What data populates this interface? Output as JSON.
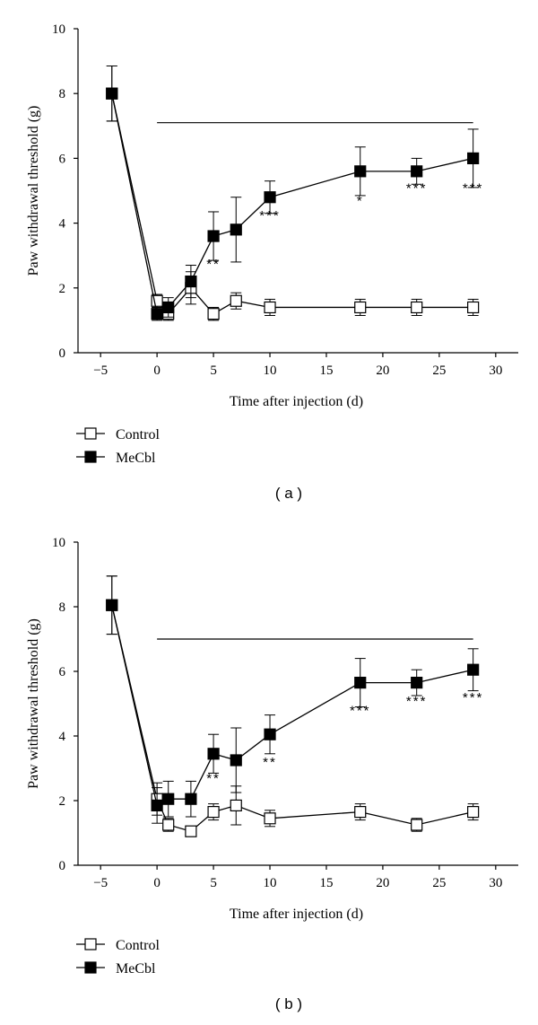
{
  "chart_data": [
    {
      "type": "line",
      "panel_label": "( a )",
      "xlabel": "Time after injection (d)",
      "ylabel": "Paw withdrawal threshold (g)",
      "xlim": [
        -7,
        32
      ],
      "ylim": [
        0,
        10
      ],
      "xticks": [
        -5,
        0,
        5,
        10,
        15,
        20,
        25,
        30
      ],
      "xtick_labels": [
        "−5",
        "0",
        "5",
        "10",
        "15",
        "20",
        "25",
        "30"
      ],
      "yticks": [
        0,
        2,
        4,
        6,
        8,
        10
      ],
      "ytick_labels": [
        "0",
        "2",
        "4",
        "6",
        "8",
        "10"
      ],
      "reference_line": {
        "x_start": 0,
        "x_end": 28,
        "y": 7.1
      },
      "series": [
        {
          "name": "Control",
          "marker": "open-square",
          "x": [
            -4,
            0,
            1,
            3,
            5,
            7,
            10,
            18,
            23,
            28
          ],
          "y": [
            8.0,
            1.6,
            1.2,
            2.0,
            1.2,
            1.6,
            1.4,
            1.4,
            1.4,
            1.4
          ],
          "err": [
            0.85,
            0.2,
            0.2,
            0.5,
            0.2,
            0.25,
            0.25,
            0.25,
            0.25,
            0.25
          ]
        },
        {
          "name": "MeCbl",
          "marker": "filled-square",
          "x": [
            -4,
            0,
            1,
            3,
            5,
            7,
            10,
            18,
            23,
            28
          ],
          "y": [
            8.0,
            1.2,
            1.4,
            2.2,
            3.6,
            3.8,
            4.8,
            5.6,
            5.6,
            6.0
          ],
          "err": [
            0.85,
            0.2,
            0.3,
            0.5,
            0.75,
            1.0,
            0.5,
            0.75,
            0.4,
            0.9
          ]
        }
      ],
      "significance": [
        {
          "x": 5,
          "y": 2.6,
          "label": "**"
        },
        {
          "x": 10,
          "y": 4.1,
          "label": "***"
        },
        {
          "x": 18,
          "y": 4.55,
          "label": "*"
        },
        {
          "x": 23,
          "y": 4.95,
          "label": "***"
        },
        {
          "x": 28,
          "y": 4.95,
          "label": "***"
        }
      ],
      "legend": [
        "Control",
        "MeCbl"
      ],
      "legend_placement": "bottom-left"
    },
    {
      "type": "line",
      "panel_label": "( b )",
      "xlabel": "Time after injection (d)",
      "ylabel": "Paw withdrawal threshold (g)",
      "xlim": [
        -7,
        32
      ],
      "ylim": [
        0,
        10
      ],
      "xticks": [
        -5,
        0,
        5,
        10,
        15,
        20,
        25,
        30
      ],
      "xtick_labels": [
        "−5",
        "0",
        "5",
        "10",
        "15",
        "20",
        "25",
        "30"
      ],
      "yticks": [
        0,
        2,
        4,
        6,
        8,
        10
      ],
      "ytick_labels": [
        "0",
        "2",
        "4",
        "6",
        "8",
        "10"
      ],
      "reference_line": {
        "x_start": 0,
        "x_end": 28,
        "y": 7.0
      },
      "series": [
        {
          "name": "Control",
          "marker": "open-square",
          "x": [
            -4,
            0,
            1,
            3,
            5,
            7,
            10,
            18,
            23,
            28
          ],
          "y": [
            8.05,
            2.05,
            1.25,
            1.05,
            1.65,
            1.85,
            1.45,
            1.65,
            1.25,
            1.65
          ],
          "err": [
            0.9,
            0.5,
            0.2,
            0.1,
            0.25,
            0.6,
            0.25,
            0.25,
            0.2,
            0.25
          ]
        },
        {
          "name": "MeCbl",
          "marker": "filled-square",
          "x": [
            -4,
            0,
            1,
            3,
            5,
            7,
            10,
            18,
            23,
            28
          ],
          "y": [
            8.05,
            1.85,
            2.05,
            2.05,
            3.45,
            3.25,
            4.05,
            5.65,
            5.65,
            6.05
          ],
          "err": [
            0.9,
            0.55,
            0.55,
            0.55,
            0.6,
            1.0,
            0.6,
            0.75,
            0.4,
            0.65
          ]
        }
      ],
      "significance": [
        {
          "x": 5,
          "y": 2.55,
          "label": "**"
        },
        {
          "x": 10,
          "y": 3.05,
          "label": "**"
        },
        {
          "x": 18,
          "y": 4.65,
          "label": "***"
        },
        {
          "x": 23,
          "y": 4.95,
          "label": "***"
        },
        {
          "x": 28,
          "y": 5.05,
          "label": "***"
        }
      ],
      "legend": [
        "Control",
        "MeCbl"
      ],
      "legend_placement": "bottom-left"
    }
  ]
}
